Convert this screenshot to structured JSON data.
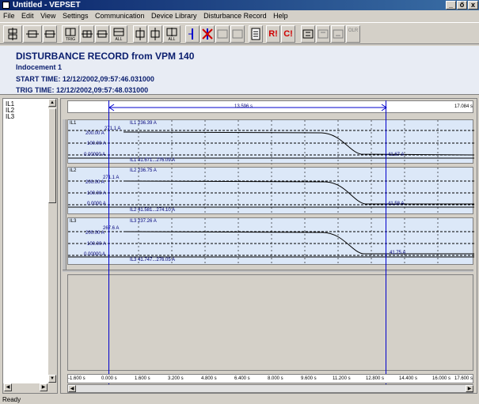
{
  "window": {
    "title": "Untitled - VEPSET",
    "controls": [
      "_",
      "ő",
      "x"
    ]
  },
  "menu": [
    "File",
    "Edit",
    "View",
    "Settings",
    "Communication",
    "Device Library",
    "Disturbance Record",
    "Help"
  ],
  "toolbar": {
    "labels": [
      "TRIG",
      "ALL",
      "ALL"
    ],
    "r_button": "R!",
    "c_button": "C!",
    "olr_label": "OLR"
  },
  "record_header": {
    "title": "DISTURBANCE RECORD from VPM 140",
    "incident": "Indocement 1",
    "start_time": "START TIME: 12/12/2002,09:57:46.031000",
    "trig_time": "TRIG TIME: 12/12/2002,09:57:48.031000"
  },
  "channel_list": [
    "IL1",
    "IL2",
    "IL3"
  ],
  "time_span": {
    "label": "13.596 s",
    "end_label": "17.084 s"
  },
  "channels": [
    {
      "name": "IL1",
      "legend": "IL1 236.39 A",
      "peak": "271.1 A",
      "scale": [
        "200.00 A",
        "100.00 A",
        "0.00000 A"
      ],
      "end_value": "41.67 A",
      "range": "IL1 41.671...276.09 A"
    },
    {
      "name": "IL2",
      "legend": "IL2 236.75 A",
      "peak": "271.1 A",
      "scale": [
        "200.00 A",
        "100.00 A",
        "0.0000 A"
      ],
      "end_value": "41.58 A",
      "range": "IL2 41.581...274.10 A"
    },
    {
      "name": "IL3",
      "legend": "IL3 237.26 A",
      "peak": "267.6 A",
      "scale": [
        "200.00 A",
        "100.00 A",
        "0.00000 A"
      ],
      "end_value": "41.75 A",
      "range": "IL3 41.747...276.05 A"
    }
  ],
  "time_axis": [
    "-1.600 s",
    "0.000 s",
    "1.600 s",
    "3.200 s",
    "4.800 s",
    "6.400 s",
    "8.000 s",
    "9.600 s",
    "11.200 s",
    "12.800 s",
    "14.400 s",
    "16.000 s",
    "17.600 s"
  ],
  "status": "Ready",
  "colors": {
    "title_bar": "#0a246a",
    "header_text": "#0a1e6e",
    "channel_bg": "#dce8f8",
    "cursor_line": "#0000cc",
    "toolbar_red": "#d00000"
  }
}
